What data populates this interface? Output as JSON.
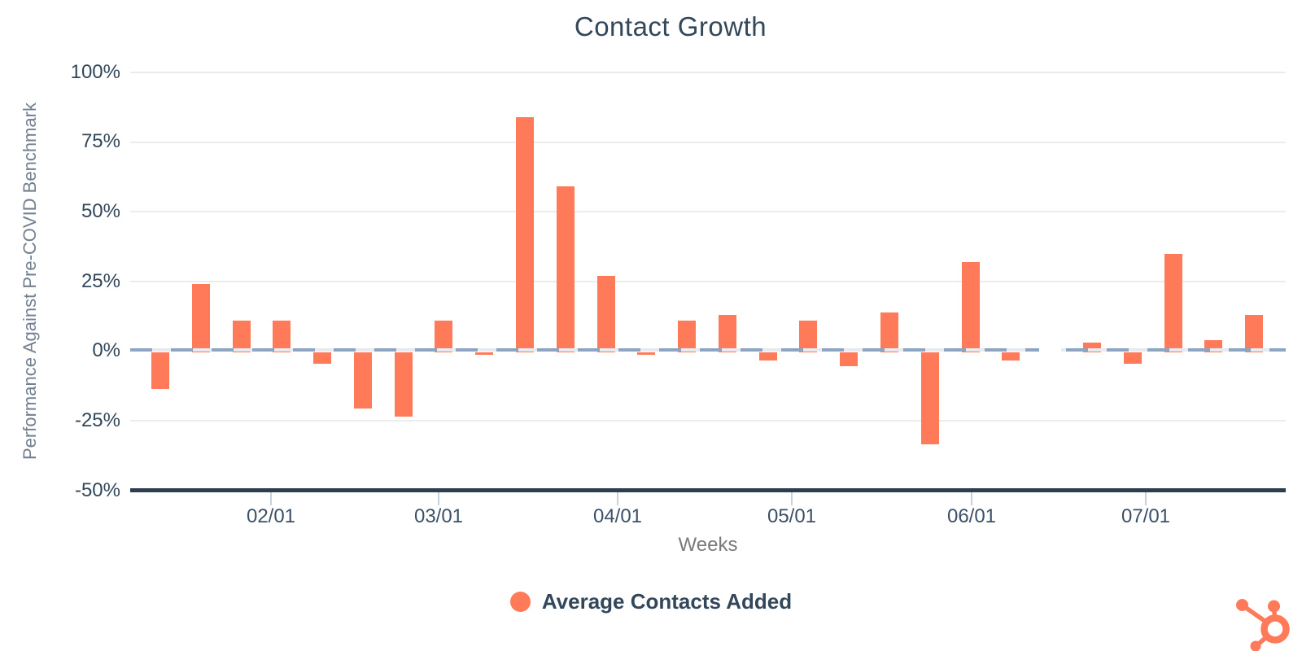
{
  "title": "Contact Growth",
  "branding": {
    "logo": "hubspot-sprocket",
    "brand_color": "#ff7a59"
  },
  "colors": {
    "bar": "#ff7a59",
    "title_text": "#33475b",
    "axis_text": "#33475b",
    "muted_text": "#73808f",
    "x_axis_line": "#2d3e50",
    "gridline": "#ececec",
    "zero_dash_blue": "#8ca5c0",
    "zero_dash_light": "#e7eaee",
    "tick_mark": "#c5d2e4"
  },
  "chart_data": {
    "type": "bar",
    "title": "Contact Growth",
    "xlabel": "Weeks",
    "ylabel": "Performance Against Pre-COVID Benchmark",
    "ylim": [
      -50,
      100
    ],
    "y_tick_labels": [
      "100%",
      "75%",
      "50%",
      "25%",
      "0%",
      "-25%",
      "-50%"
    ],
    "x_tick_labels": [
      "02/01",
      "03/01",
      "04/01",
      "05/01",
      "06/01",
      "07/01"
    ],
    "grid": true,
    "legend_position": "bottom",
    "zero_baseline_dashed": true,
    "x_description": "28 consecutive weeks (weekly bars, mid-January through mid-July); week 23 has no bar (missing data gap in baseline)",
    "series": [
      {
        "name": "Average Contacts Added",
        "color": "#ff7a59",
        "unit": "% vs pre-COVID benchmark",
        "values": [
          -13,
          24,
          11,
          11,
          -4,
          -20,
          -23,
          11,
          -1,
          84,
          59,
          27,
          -1,
          11,
          13,
          -3,
          11,
          -5,
          14,
          -33,
          32,
          -3,
          null,
          3,
          -4,
          35,
          4,
          13
        ]
      }
    ]
  }
}
